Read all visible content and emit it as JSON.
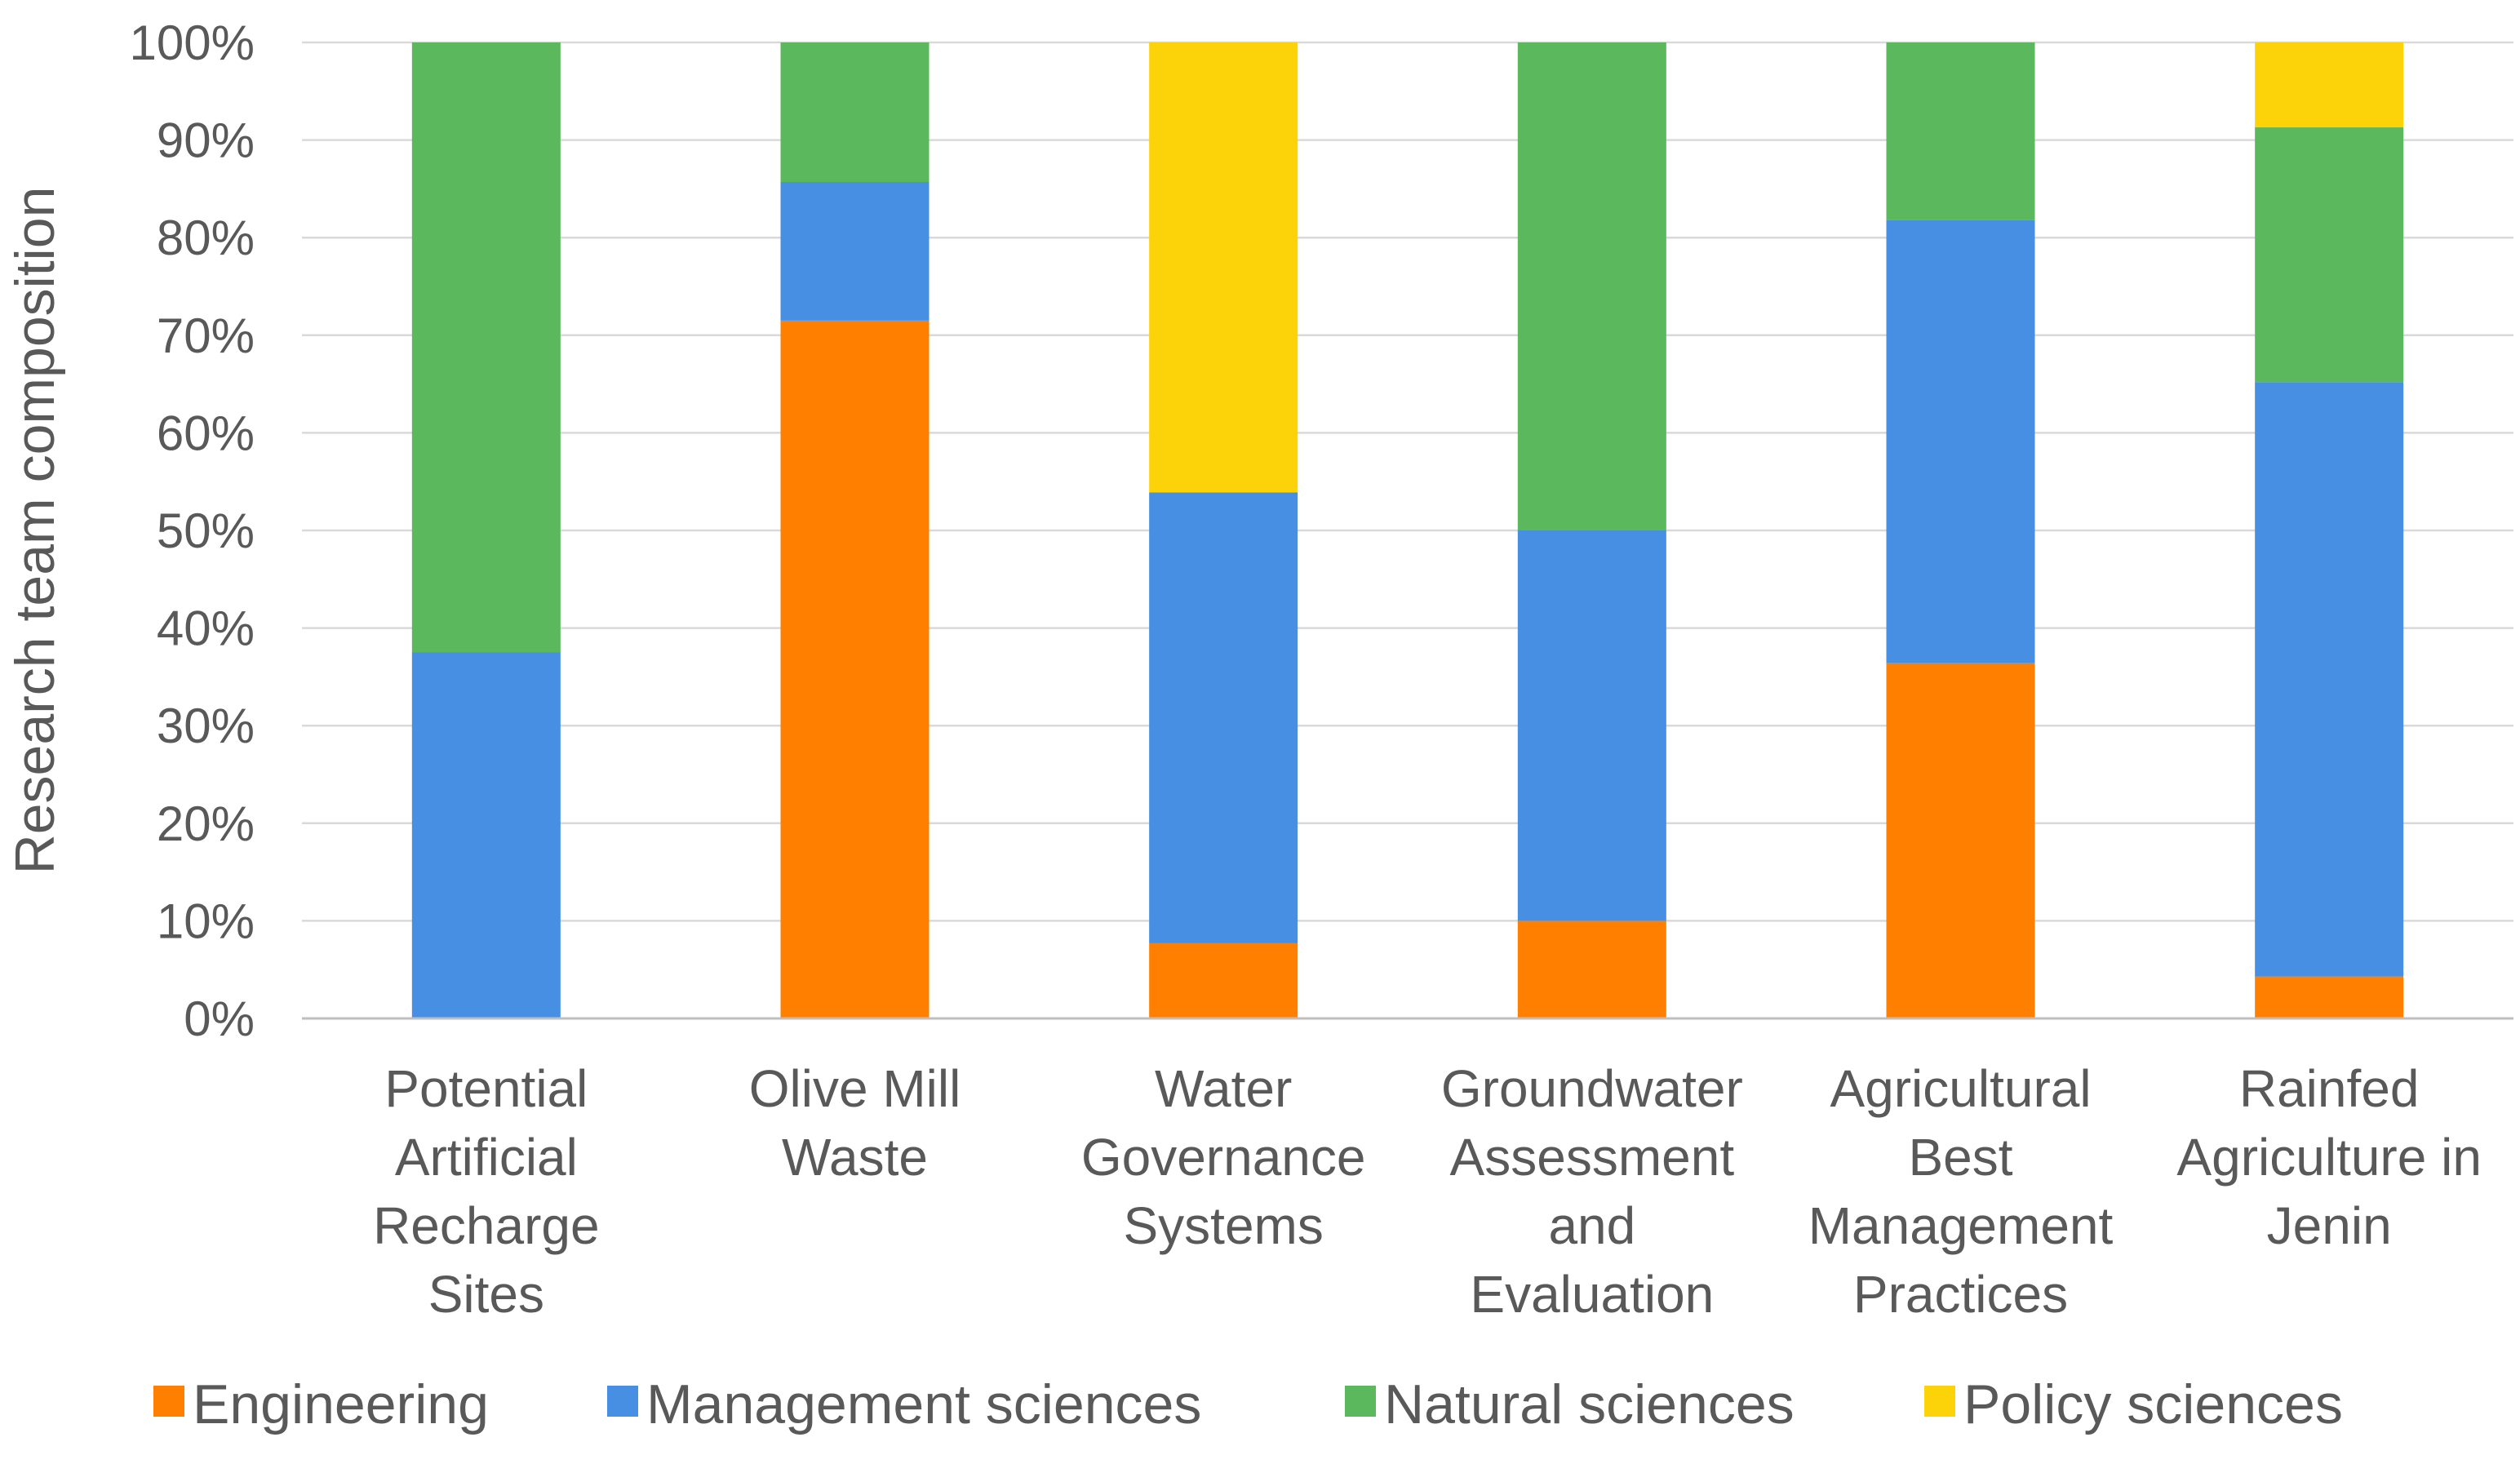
{
  "chart_data": {
    "type": "bar",
    "stacked": true,
    "percent": true,
    "ylabel": "Research team composition",
    "ylim": [
      0,
      100
    ],
    "yticks": [
      "0%",
      "10%",
      "20%",
      "30%",
      "40%",
      "50%",
      "60%",
      "70%",
      "80%",
      "90%",
      "100%"
    ],
    "grid": true,
    "legend_position": "bottom",
    "categories": [
      [
        "Potential",
        "Artificial",
        "Recharge",
        "Sites"
      ],
      [
        "Olive Mill",
        "Waste"
      ],
      [
        "Water",
        "Governance",
        "Systems"
      ],
      [
        "Groundwater",
        "Assessment",
        "and",
        "Evaluation"
      ],
      [
        "Agricultural",
        "Best",
        "Management",
        "Practices"
      ],
      [
        "Rainfed",
        "Agriculture in",
        "Jenin"
      ]
    ],
    "series": [
      {
        "name": "Engineering",
        "color": "#ff7f00",
        "values": [
          0,
          71.5,
          7.7,
          10,
          36.4,
          4.3
        ]
      },
      {
        "name": "Management sciences",
        "color": "#468fe3",
        "values": [
          37.5,
          14.2,
          46.2,
          40,
          45.4,
          60.9
        ]
      },
      {
        "name": "Natural sciences",
        "color": "#5cb85c",
        "values": [
          62.5,
          14.3,
          0,
          50,
          18.2,
          26.1
        ]
      },
      {
        "name": "Policy sciences",
        "color": "#fcd209",
        "values": [
          0,
          0,
          46.1,
          0,
          0,
          8.7
        ]
      }
    ]
  }
}
